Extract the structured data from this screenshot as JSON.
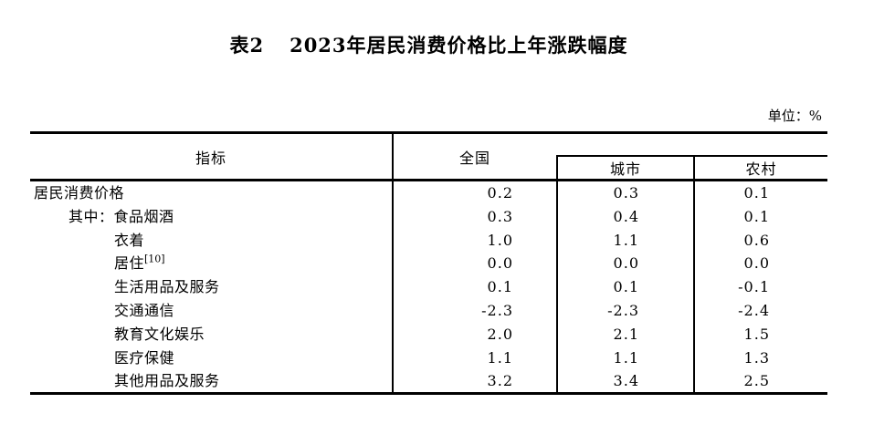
{
  "title": {
    "prefix": "表2",
    "text": "2023年居民消费价格比上年涨跌幅度"
  },
  "unit_label": "单位：%",
  "table": {
    "headers": {
      "indicator": "指标",
      "national": "全国",
      "urban": "城市",
      "rural": "农村"
    },
    "rows": [
      {
        "prefix": "",
        "label": "居民消费价格",
        "sup": "",
        "national": "0.2",
        "urban": "0.3",
        "rural": "0.1"
      },
      {
        "prefix": "其中：",
        "label": "食品烟酒",
        "sup": "",
        "national": "0.3",
        "urban": "0.4",
        "rural": "0.1"
      },
      {
        "prefix": "",
        "label": "衣着",
        "sup": "",
        "national": "1.0",
        "urban": "1.1",
        "rural": "0.6"
      },
      {
        "prefix": "",
        "label": "居住",
        "sup": "[10]",
        "national": "0.0",
        "urban": "0.0",
        "rural": "0.0"
      },
      {
        "prefix": "",
        "label": "生活用品及服务",
        "sup": "",
        "national": "0.1",
        "urban": "0.1",
        "rural": "-0.1"
      },
      {
        "prefix": "",
        "label": "交通通信",
        "sup": "",
        "national": "-2.3",
        "urban": "-2.3",
        "rural": "-2.4"
      },
      {
        "prefix": "",
        "label": "教育文化娱乐",
        "sup": "",
        "national": "2.0",
        "urban": "2.1",
        "rural": "1.5"
      },
      {
        "prefix": "",
        "label": "医疗保健",
        "sup": "",
        "national": "1.1",
        "urban": "1.1",
        "rural": "1.3"
      },
      {
        "prefix": "",
        "label": "其他用品及服务",
        "sup": "",
        "national": "3.2",
        "urban": "3.4",
        "rural": "2.5"
      }
    ]
  },
  "colors": {
    "background": "#ffffff",
    "text": "#000000",
    "border": "#000000"
  }
}
